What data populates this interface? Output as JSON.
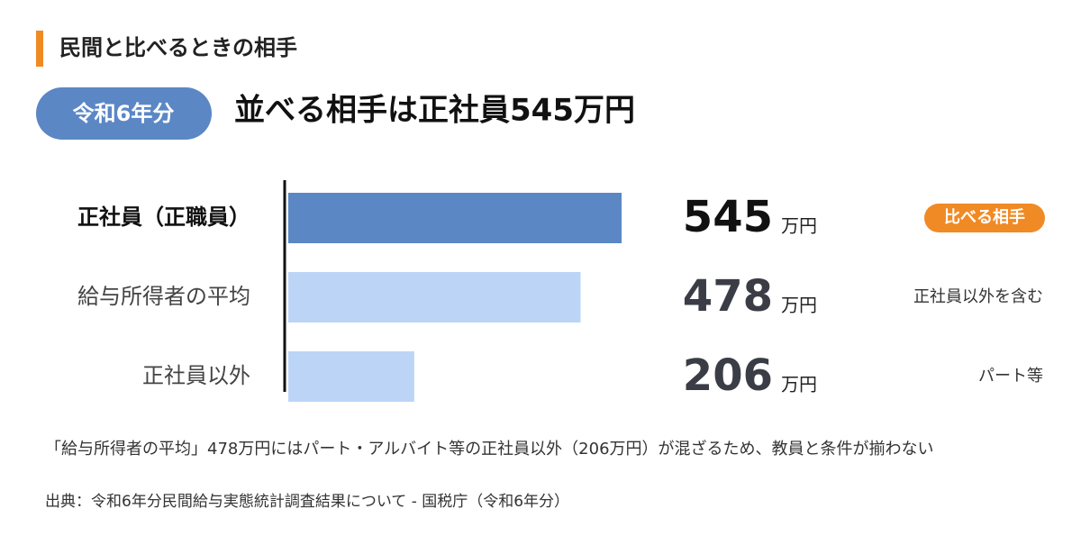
{
  "header": {
    "section": "民間と比べるときの相手",
    "badge": "令和6年分",
    "headline": "並べる相手は正社員545万円"
  },
  "chart_data": {
    "type": "bar",
    "orientation": "horizontal",
    "categories": [
      "正社員（正職員）",
      "給与所得者の平均",
      "正社員以外"
    ],
    "values": [
      545,
      478,
      206
    ],
    "colors": [
      "#5b87c5",
      "#bcd5f7",
      "#bcd5f7"
    ],
    "unit": "万円",
    "notes": [
      "比べる相手",
      "正社員以外を含む",
      "パート等"
    ],
    "xlim": [
      0,
      545
    ]
  },
  "footer": {
    "note": "「給与所得者の平均」478万円にはパート・アルバイト等の正社員以外（206万円）が混ざるため、教員と条件が揃わない",
    "source": "出典：令和6年分民間給与実態統計調査結果について - 国税庁（令和6年分）"
  }
}
